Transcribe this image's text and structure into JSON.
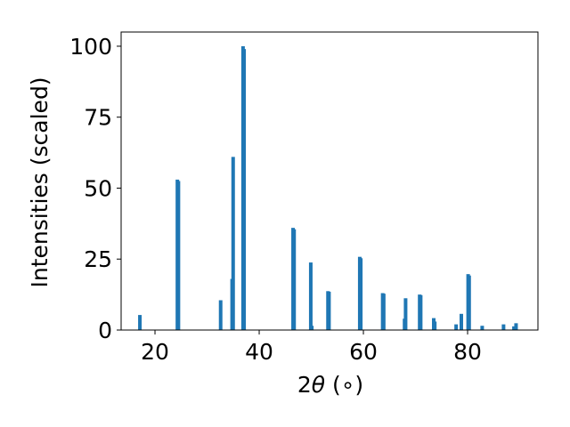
{
  "chart_data": {
    "type": "bar",
    "title": "",
    "xlabel_prefix": "2",
    "xlabel_symbol": "θ",
    "xlabel_unit": " (∘)",
    "ylabel": "Intensities (scaled)",
    "xlim": [
      13.5,
      93.5
    ],
    "ylim": [
      0,
      105
    ],
    "xticks": [
      20,
      40,
      60,
      80
    ],
    "yticks": [
      0,
      25,
      50,
      75,
      100
    ],
    "bar_color": "#1f77b4",
    "grid": false,
    "x": [
      17.1,
      24.3,
      24.5,
      32.6,
      34.8,
      35.0,
      36.9,
      37.1,
      46.5,
      46.7,
      49.9,
      50.1,
      53.2,
      53.4,
      59.3,
      59.5,
      63.7,
      63.9,
      67.9,
      68.1,
      70.8,
      71.0,
      73.5,
      73.7,
      77.8,
      78.8,
      80.1,
      80.3,
      82.8,
      86.9,
      88.9,
      89.3
    ],
    "values": [
      5.3,
      53.0,
      52.5,
      10.5,
      18.0,
      61.0,
      100.0,
      99.0,
      36.0,
      35.5,
      23.8,
      1.5,
      13.7,
      13.5,
      25.8,
      25.3,
      13.0,
      12.8,
      4.0,
      11.2,
      12.5,
      12.3,
      4.2,
      3.0,
      2.0,
      5.7,
      19.7,
      19.2,
      1.5,
      2.0,
      1.3,
      2.4
    ]
  }
}
